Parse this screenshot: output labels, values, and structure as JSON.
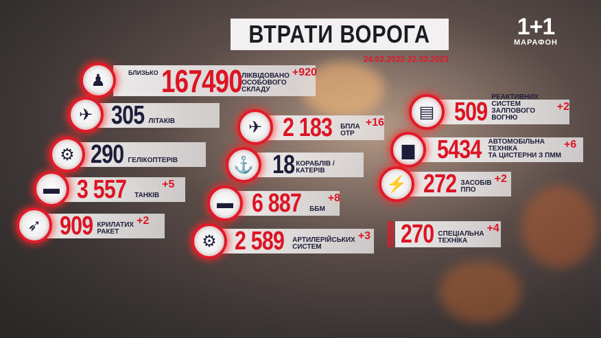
{
  "header": {
    "title": "ВТРАТИ ВОРОГА",
    "date_range": "24.02.2022-22.03.2023"
  },
  "logo": {
    "channel": "1+1",
    "subtitle": "МАРАФОН"
  },
  "colors": {
    "accent": "#dc1424",
    "dark": "#1d1d3a"
  },
  "items": [
    {
      "icon": "soldier-icon",
      "prefix": "БЛИЗЬКО",
      "value": "167490",
      "label": "ЛІКВІДОВАНО\nОСОБОВОГО\nСКЛАДУ",
      "delta": "+920"
    },
    {
      "icon": "fighter-jet-icon",
      "value": "305",
      "label": "ЛІТАКІВ",
      "delta": ""
    },
    {
      "icon": "helicopter-icon",
      "value": "290",
      "label": "ГЕЛІКОПТЕРІВ",
      "delta": ""
    },
    {
      "icon": "tank-icon",
      "value": "3 557",
      "label": "ТАНКІВ",
      "delta": "+5"
    },
    {
      "icon": "missile-icon",
      "value": "909",
      "label": "КРИЛАТИХ\nРАКЕТ",
      "delta": "+2"
    },
    {
      "icon": "drone-icon",
      "value": "2 183",
      "label": "БПЛА ОТР",
      "delta": "+16"
    },
    {
      "icon": "ship-icon",
      "value": "18",
      "label": "КОРАБЛІВ / КАТЕРІВ",
      "delta": ""
    },
    {
      "icon": "apc-icon",
      "value": "6 887",
      "label": "ББМ",
      "delta": "+8"
    },
    {
      "icon": "artillery-icon",
      "value": "2 589",
      "label": "АРТИЛЕРІЙСЬКИХ\nСИСТЕМ",
      "delta": "+3"
    },
    {
      "icon": "rocket-launcher-icon",
      "value": "509",
      "label": "РЕАКТИВНИХ\nСИСТЕМ\nЗАЛПОВОГО ВОГНЮ",
      "delta": "+2"
    },
    {
      "icon": "jeep-icon",
      "value": "5434",
      "label": "АВТОМОБІЛЬНА\nТЕХНІКА\nТА ЦИСТЕРНИ З ПММ",
      "delta": "+6"
    },
    {
      "icon": "air-defense-icon",
      "value": "272",
      "label": "ЗАСОБІВ\nППО",
      "delta": "+2"
    },
    {
      "icon": "",
      "value": "270",
      "label": "СПЕЦІАЛЬНА\nТЕХНІКА",
      "delta": "+4"
    }
  ]
}
